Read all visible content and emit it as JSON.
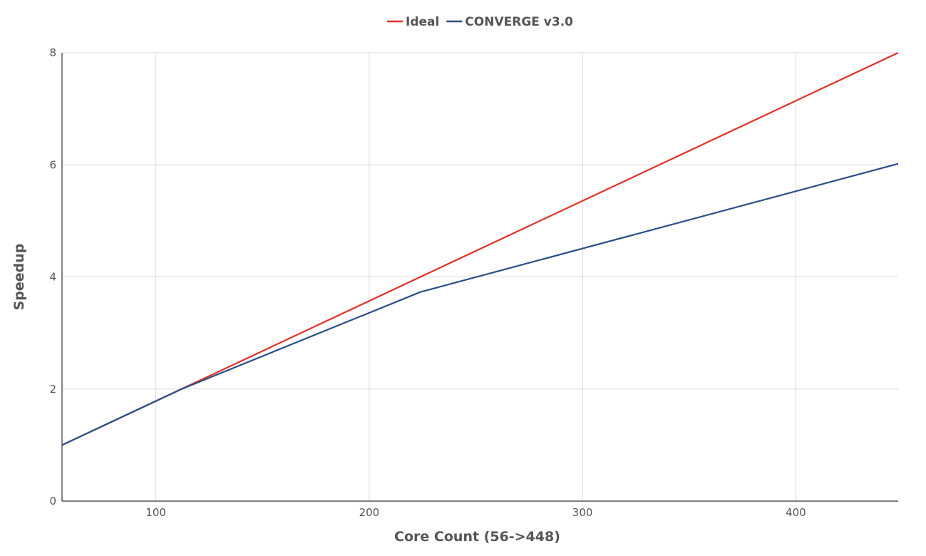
{
  "chart_data": {
    "type": "line",
    "xlabel": "Core Count (56->448)",
    "ylabel": "Speedup",
    "xlim": [
      56,
      448
    ],
    "ylim": [
      0,
      8
    ],
    "x_ticks": [
      100,
      200,
      300,
      400
    ],
    "y_ticks": [
      0,
      2,
      4,
      6,
      8
    ],
    "grid": true,
    "legend_position": "top-center",
    "series": [
      {
        "name": "Ideal",
        "color": "#e03127",
        "x": [
          56,
          112,
          224,
          448
        ],
        "y": [
          1,
          2,
          4,
          8
        ]
      },
      {
        "name": "CONVERGE v3.0",
        "color": "#2b4f86",
        "x": [
          56,
          112,
          224,
          448
        ],
        "y": [
          1,
          2,
          3.73,
          6.02
        ]
      }
    ]
  }
}
